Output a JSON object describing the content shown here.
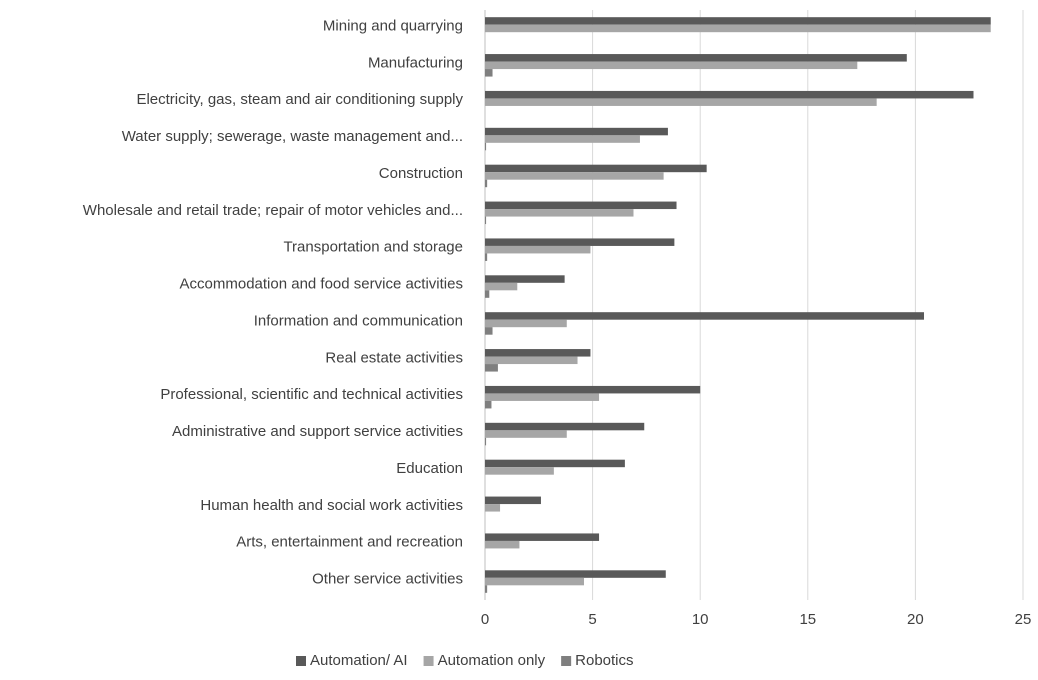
{
  "chart_data": {
    "type": "hbar",
    "categories": [
      "Mining and quarrying",
      "Manufacturing",
      "Electricity, gas, steam and air conditioning supply",
      "Water supply; sewerage, waste management and...",
      "Construction",
      "Wholesale and retail trade; repair of motor vehicles and...",
      "Transportation and storage",
      "Accommodation and food service activities",
      "Information and communication",
      "Real estate activities",
      "Professional, scientific and technical activities",
      "Administrative and support service activities",
      "Education",
      "Human health and social work activities",
      "Arts, entertainment and recreation",
      "Other service activities"
    ],
    "series": [
      {
        "name": "Automation/ AI",
        "color": "#595959",
        "values": [
          23.5,
          19.6,
          22.7,
          8.5,
          10.3,
          8.9,
          8.8,
          3.7,
          20.4,
          4.9,
          10.0,
          7.4,
          6.5,
          2.6,
          5.3,
          8.4
        ]
      },
      {
        "name": "Automation only",
        "color": "#a6a6a6",
        "values": [
          23.5,
          17.3,
          18.2,
          7.2,
          8.3,
          6.9,
          4.9,
          1.5,
          3.8,
          4.3,
          5.3,
          3.8,
          3.2,
          0.7,
          1.6,
          4.6
        ]
      },
      {
        "name": "Robotics",
        "color": "#7f7f7f",
        "values": [
          0,
          0.35,
          0,
          0.05,
          0.1,
          0.05,
          0.1,
          0.2,
          0.35,
          0.6,
          0.3,
          0.05,
          0,
          0,
          0,
          0.1
        ]
      }
    ],
    "xlim": [
      0,
      25
    ],
    "xticks": [
      0,
      5,
      10,
      15,
      20,
      25
    ],
    "grid": true,
    "legend": "bottom"
  }
}
